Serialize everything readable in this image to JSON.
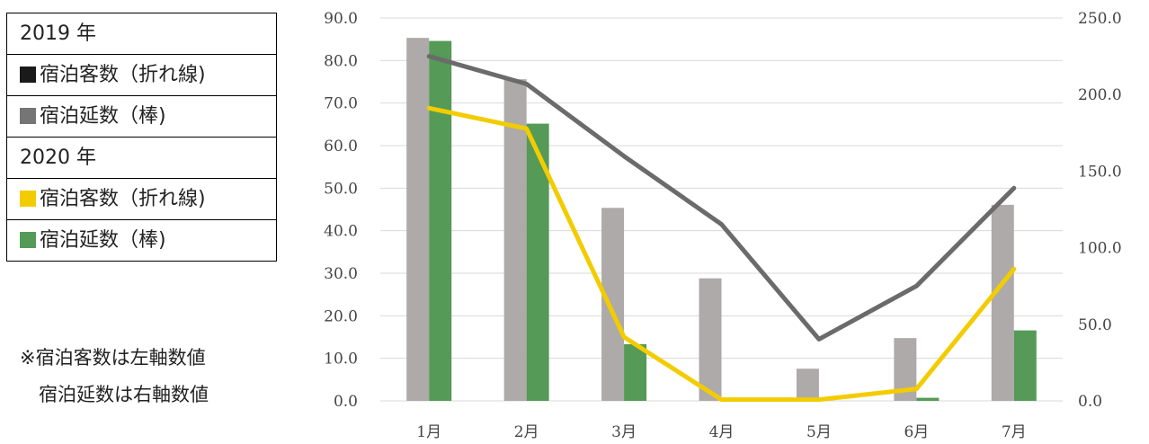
{
  "legend": {
    "year2019": "2019 年",
    "guests2019": "宿泊客数（折れ線)",
    "nights2019": "宿泊延数（棒)",
    "year2020": "2020 年",
    "guests2020": "宿泊客数（折れ線)",
    "nights2020": "宿泊延数（棒)"
  },
  "note": {
    "line1": "※宿泊客数は左軸数値",
    "line2": "宿泊延数は右軸数値"
  },
  "colors": {
    "guests2019": "#6b6b6b",
    "nights2019": "#aeaaa9",
    "guests2020": "#f3cc00",
    "nights2020": "#559a57",
    "swatch2019_guests": "#1a1a1a",
    "swatch2019_nights": "#757575",
    "grid": "#d9d9d9"
  },
  "chart_data": {
    "type": "bar+line",
    "categories": [
      "1月",
      "2月",
      "3月",
      "4月",
      "5月",
      "6月",
      "7月"
    ],
    "left_axis": {
      "min": 0,
      "max": 90,
      "step": 10,
      "ticks": [
        "0.0",
        "10.0",
        "20.0",
        "30.0",
        "40.0",
        "50.0",
        "60.0",
        "70.0",
        "80.0",
        "90.0"
      ]
    },
    "right_axis": {
      "min": 0,
      "max": 250,
      "step": 50,
      "ticks": [
        "0.0",
        "50.0",
        "100.0",
        "150.0",
        "200.0",
        "250.0"
      ]
    },
    "series": [
      {
        "name": "2019 宿泊延数（棒)",
        "kind": "bar",
        "axis": "right",
        "values": [
          237,
          210,
          126,
          80,
          21,
          41,
          128
        ]
      },
      {
        "name": "2020 宿泊延数（棒)",
        "kind": "bar",
        "axis": "right",
        "values": [
          235,
          181,
          37,
          0,
          0,
          2,
          46
        ]
      },
      {
        "name": "2019 宿泊客数（折れ線)",
        "kind": "line",
        "axis": "left",
        "values": [
          81.0,
          74.5,
          57.5,
          41.5,
          14.5,
          27.0,
          50.0
        ]
      },
      {
        "name": "2020 宿泊客数（折れ線)",
        "kind": "line",
        "axis": "left",
        "values": [
          68.8,
          64.0,
          15.0,
          0.3,
          0.3,
          2.8,
          31.0
        ]
      }
    ],
    "grid": true
  }
}
